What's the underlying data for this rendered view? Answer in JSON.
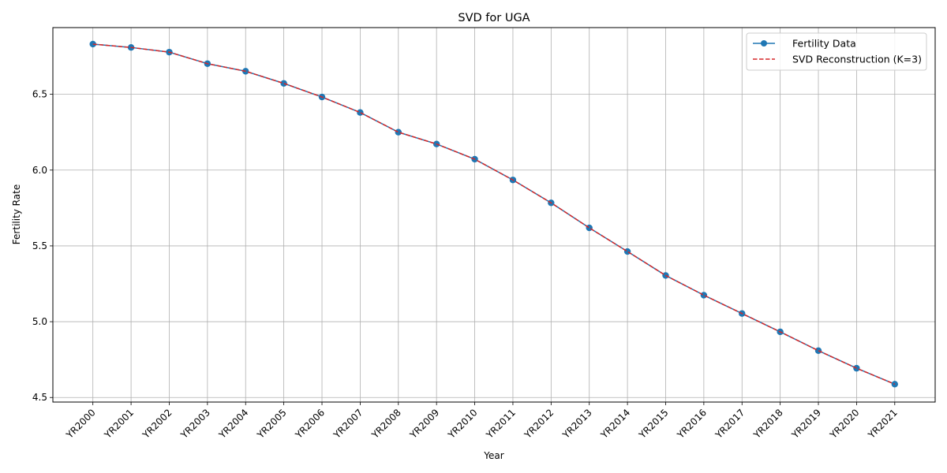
{
  "chart_data": {
    "type": "line",
    "title": "SVD for UGA",
    "xlabel": "Year",
    "ylabel": "Fertility Rate",
    "categories": [
      "YR2000",
      "YR2001",
      "YR2002",
      "YR2003",
      "YR2004",
      "YR2005",
      "YR2006",
      "YR2007",
      "YR2008",
      "YR2009",
      "YR2010",
      "YR2011",
      "YR2012",
      "YR2013",
      "YR2014",
      "YR2015",
      "YR2016",
      "YR2017",
      "YR2018",
      "YR2019",
      "YR2020",
      "YR2021"
    ],
    "yticks": [
      4.5,
      5.0,
      5.5,
      6.0,
      6.5
    ],
    "ytick_labels": [
      "4.5",
      "5.0",
      "5.5",
      "6.0",
      "6.5"
    ],
    "ylim": [
      4.47,
      6.94
    ],
    "grid": true,
    "legend_position": "top-right",
    "series": [
      {
        "name": "Fertility Data",
        "style": "solid line with circle markers",
        "color": "#1f77b4",
        "values": [
          6.831,
          6.809,
          6.778,
          6.702,
          6.652,
          6.572,
          6.482,
          6.38,
          6.25,
          6.172,
          6.072,
          5.935,
          5.784,
          5.619,
          5.463,
          5.305,
          5.175,
          5.054,
          4.933,
          4.809,
          4.693,
          4.588
        ]
      },
      {
        "name": "SVD Reconstruction (K=3)",
        "style": "dashed line",
        "color": "#d62728",
        "values": [
          6.831,
          6.809,
          6.778,
          6.702,
          6.652,
          6.572,
          6.482,
          6.38,
          6.25,
          6.172,
          6.072,
          5.935,
          5.784,
          5.619,
          5.463,
          5.305,
          5.175,
          5.054,
          4.933,
          4.809,
          4.693,
          4.588
        ]
      }
    ]
  }
}
